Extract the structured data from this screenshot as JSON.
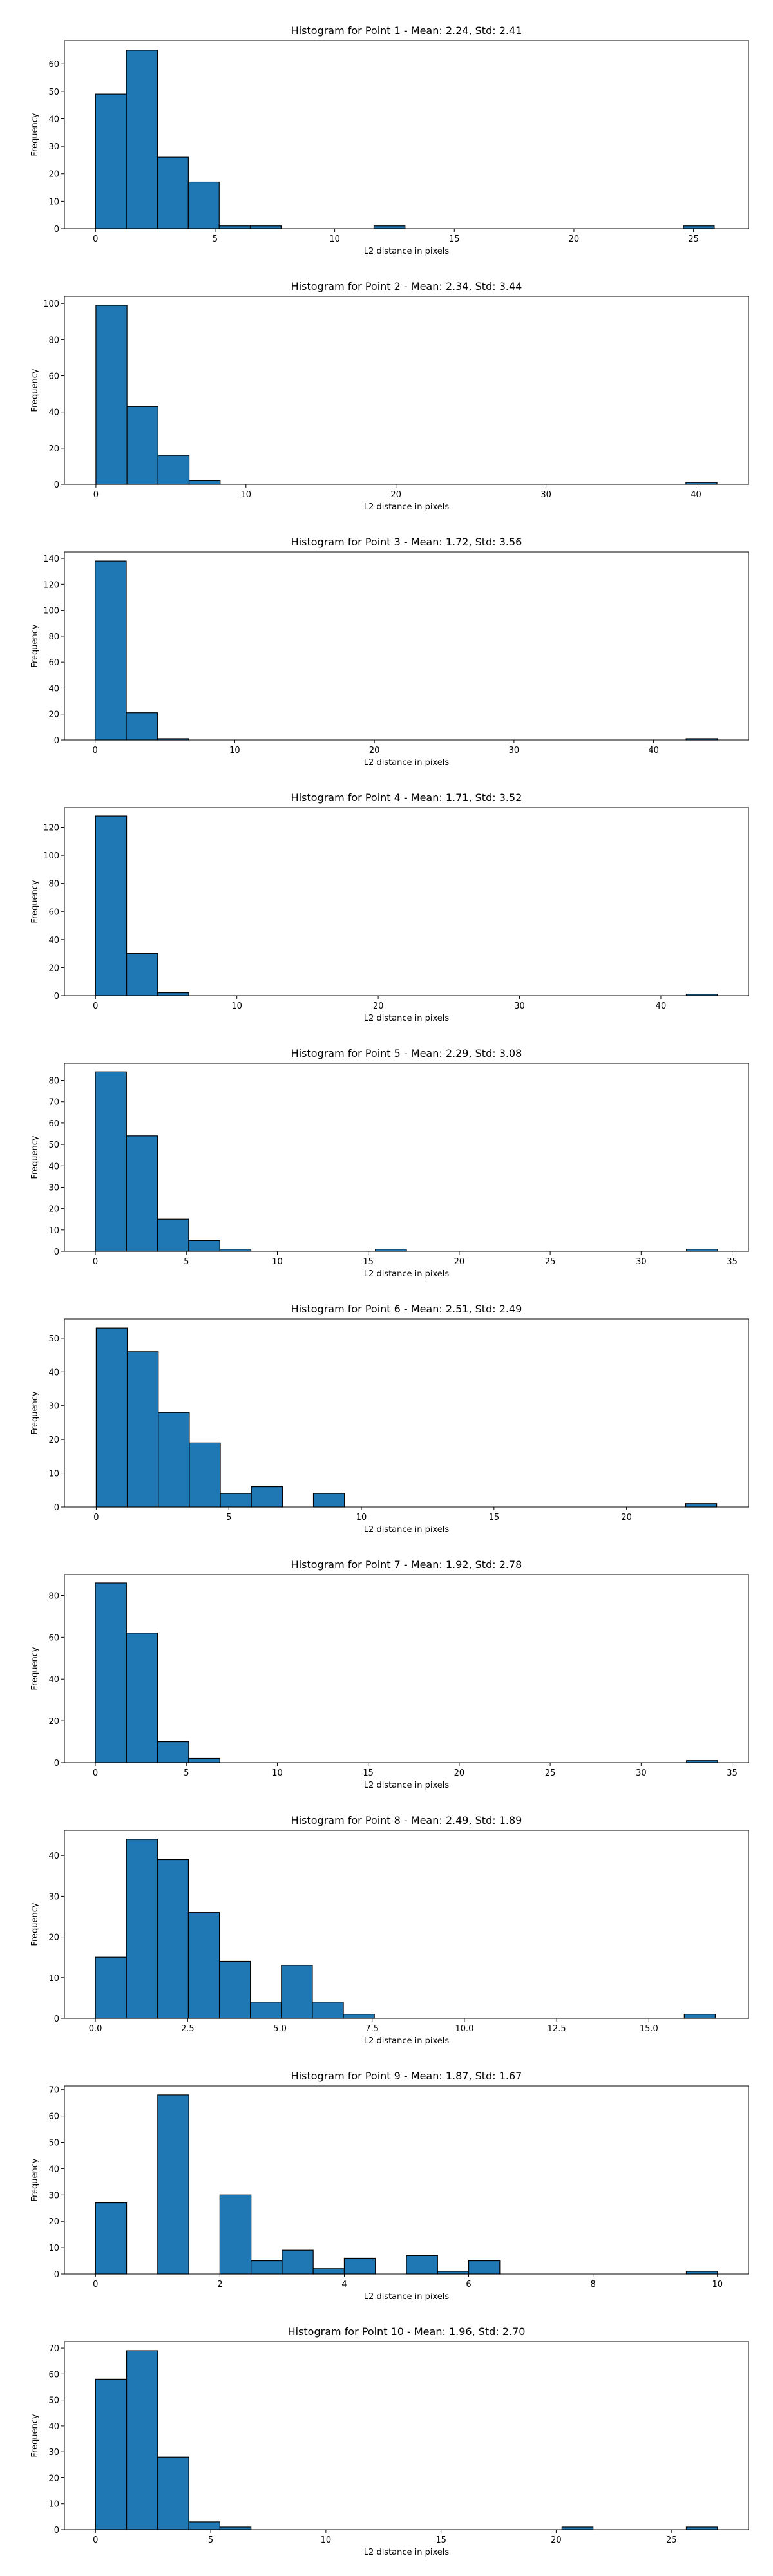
{
  "chart_data": [
    {
      "type": "bar",
      "title": "Histogram for Point 1 - Mean: 2.24, Std: 2.41",
      "xlabel": "L2 distance in pixels",
      "ylabel": "Frequency",
      "xlim": [
        -1.3,
        27.3
      ],
      "ylim": [
        0,
        68.5
      ],
      "xticks": [
        0,
        5,
        10,
        15,
        20,
        25
      ],
      "yticks": [
        0,
        10,
        20,
        30,
        40,
        50,
        60
      ],
      "bins": [
        0,
        1.29,
        2.59,
        3.88,
        5.17,
        6.47,
        7.76,
        9.06,
        10.35,
        11.64,
        12.94,
        14.23,
        15.52,
        16.82,
        18.11,
        19.4,
        20.7,
        21.99,
        23.29,
        24.58,
        25.87
      ],
      "counts": [
        49,
        65,
        26,
        17,
        1,
        1,
        0,
        0,
        0,
        1,
        0,
        0,
        0,
        0,
        0,
        0,
        0,
        0,
        0,
        1
      ],
      "bar_color": "#1f77b4",
      "grid": false
    },
    {
      "type": "bar",
      "title": "Histogram for Point 2 - Mean: 2.34, Std: 3.44",
      "xlabel": "L2 distance in pixels",
      "ylabel": "Frequency",
      "xlim": [
        -2.1,
        43.5
      ],
      "ylim": [
        0,
        104
      ],
      "xticks": [
        0,
        10,
        20,
        30,
        40
      ],
      "yticks": [
        0,
        20,
        40,
        60,
        80,
        100
      ],
      "bins": [
        0,
        2.07,
        4.14,
        6.21,
        8.28,
        10.35,
        12.42,
        14.49,
        16.56,
        18.63,
        20.7,
        22.77,
        24.84,
        26.91,
        28.98,
        31.05,
        33.12,
        35.19,
        37.26,
        39.33,
        41.4
      ],
      "counts": [
        99,
        43,
        16,
        2,
        0,
        0,
        0,
        0,
        0,
        0,
        0,
        0,
        0,
        0,
        0,
        0,
        0,
        0,
        0,
        1
      ],
      "bar_color": "#1f77b4",
      "grid": false
    },
    {
      "type": "bar",
      "title": "Histogram for Point 3 - Mean: 1.72, Std: 3.56",
      "xlabel": "L2 distance in pixels",
      "ylabel": "Frequency",
      "xlim": [
        -2.2,
        46.8
      ],
      "ylim": [
        0,
        145
      ],
      "xticks": [
        0,
        10,
        20,
        30,
        40
      ],
      "yticks": [
        0,
        20,
        40,
        60,
        80,
        100,
        120,
        140
      ],
      "bins": [
        0,
        2.23,
        4.46,
        6.68,
        8.91,
        11.14,
        13.37,
        15.6,
        17.82,
        20.05,
        22.28,
        24.51,
        26.74,
        28.96,
        31.19,
        33.42,
        35.65,
        37.88,
        40.1,
        42.33,
        44.56
      ],
      "counts": [
        138,
        21,
        1,
        0,
        0,
        0,
        0,
        0,
        0,
        0,
        0,
        0,
        0,
        0,
        0,
        0,
        0,
        0,
        0,
        1
      ],
      "bar_color": "#1f77b4",
      "grid": false
    },
    {
      "type": "bar",
      "title": "Histogram for Point 4 - Mean: 1.71, Std: 3.52",
      "xlabel": "L2 distance in pixels",
      "ylabel": "Frequency",
      "xlim": [
        -2.2,
        46.2
      ],
      "ylim": [
        0,
        134
      ],
      "xticks": [
        0,
        10,
        20,
        30,
        40
      ],
      "yticks": [
        0,
        20,
        40,
        60,
        80,
        100,
        120
      ],
      "bins": [
        0,
        2.2,
        4.4,
        6.6,
        8.8,
        11.0,
        13.2,
        15.4,
        17.6,
        19.8,
        22.0,
        24.2,
        26.4,
        28.6,
        30.8,
        33.0,
        35.2,
        37.4,
        39.6,
        41.8,
        44.0
      ],
      "counts": [
        128,
        30,
        2,
        0,
        0,
        0,
        0,
        0,
        0,
        0,
        0,
        0,
        0,
        0,
        0,
        0,
        0,
        0,
        0,
        1
      ],
      "bar_color": "#1f77b4",
      "grid": false
    },
    {
      "type": "bar",
      "title": "Histogram for Point 5 - Mean: 2.29, Std: 3.08",
      "xlabel": "L2 distance in pixels",
      "ylabel": "Frequency",
      "xlim": [
        -1.7,
        35.9
      ],
      "ylim": [
        0,
        88
      ],
      "xticks": [
        0,
        5,
        10,
        15,
        20,
        25,
        30,
        35
      ],
      "yticks": [
        0,
        10,
        20,
        30,
        40,
        50,
        60,
        70,
        80
      ],
      "bins": [
        0,
        1.71,
        3.42,
        5.13,
        6.84,
        8.55,
        10.26,
        11.97,
        13.68,
        15.39,
        17.1,
        18.81,
        20.52,
        22.23,
        23.94,
        25.65,
        27.36,
        29.07,
        30.78,
        32.49,
        34.2
      ],
      "counts": [
        84,
        54,
        15,
        5,
        1,
        0,
        0,
        0,
        0,
        1,
        0,
        0,
        0,
        0,
        0,
        0,
        0,
        0,
        0,
        1
      ],
      "bar_color": "#1f77b4",
      "grid": false
    },
    {
      "type": "bar",
      "title": "Histogram for Point 6 - Mean: 2.51, Std: 2.49",
      "xlabel": "L2 distance in pixels",
      "ylabel": "Frequency",
      "xlim": [
        -1.2,
        24.6
      ],
      "ylim": [
        0,
        55.7
      ],
      "xticks": [
        0,
        5,
        10,
        15,
        20
      ],
      "yticks": [
        0,
        10,
        20,
        30,
        40,
        50
      ],
      "bins": [
        0,
        1.17,
        2.34,
        3.51,
        4.68,
        5.85,
        7.02,
        8.19,
        9.36,
        10.53,
        11.7,
        12.87,
        14.04,
        15.21,
        16.38,
        17.55,
        18.72,
        19.89,
        21.06,
        22.23,
        23.4
      ],
      "counts": [
        53,
        46,
        28,
        19,
        4,
        6,
        0,
        4,
        0,
        0,
        0,
        0,
        0,
        0,
        0,
        0,
        0,
        0,
        0,
        1
      ],
      "bar_color": "#1f77b4",
      "grid": false
    },
    {
      "type": "bar",
      "title": "Histogram for Point 7 - Mean: 1.92, Std: 2.78",
      "xlabel": "L2 distance in pixels",
      "ylabel": "Frequency",
      "xlim": [
        -1.7,
        35.9
      ],
      "ylim": [
        0,
        90
      ],
      "xticks": [
        0,
        5,
        10,
        15,
        20,
        25,
        30,
        35
      ],
      "yticks": [
        0,
        20,
        40,
        60,
        80
      ],
      "bins": [
        0,
        1.71,
        3.42,
        5.13,
        6.84,
        8.55,
        10.26,
        11.97,
        13.68,
        15.39,
        17.1,
        18.81,
        20.52,
        22.23,
        23.94,
        25.65,
        27.36,
        29.07,
        30.78,
        32.49,
        34.2
      ],
      "counts": [
        86,
        62,
        10,
        2,
        0,
        0,
        0,
        0,
        0,
        0,
        0,
        0,
        0,
        0,
        0,
        0,
        0,
        0,
        0,
        1
      ],
      "bar_color": "#1f77b4",
      "grid": false
    },
    {
      "type": "bar",
      "title": "Histogram for Point 8 - Mean: 2.49, Std: 1.89",
      "xlabel": "L2 distance in pixels",
      "ylabel": "Frequency",
      "xlim": [
        -0.84,
        17.7
      ],
      "ylim": [
        0,
        46.2
      ],
      "xticks": [
        0.0,
        2.5,
        5.0,
        7.5,
        10.0,
        12.5,
        15.0
      ],
      "xtick_labels": [
        "0.0",
        "2.5",
        "5.0",
        "7.5",
        "10.0",
        "12.5",
        "15.0"
      ],
      "yticks": [
        0,
        10,
        20,
        30,
        40
      ],
      "bins": [
        0,
        0.84,
        1.68,
        2.52,
        3.36,
        4.2,
        5.04,
        5.88,
        6.72,
        7.56,
        8.4,
        9.24,
        10.08,
        10.92,
        11.76,
        12.6,
        13.44,
        14.28,
        15.12,
        15.96,
        16.8
      ],
      "counts": [
        15,
        44,
        39,
        26,
        14,
        4,
        13,
        4,
        1,
        0,
        0,
        0,
        0,
        0,
        0,
        0,
        0,
        0,
        0,
        1
      ],
      "bar_color": "#1f77b4",
      "grid": false
    },
    {
      "type": "bar",
      "title": "Histogram for Point 9 - Mean: 1.87, Std: 1.67",
      "xlabel": "L2 distance in pixels",
      "ylabel": "Frequency",
      "xlim": [
        -0.5,
        10.5
      ],
      "ylim": [
        0,
        71.4
      ],
      "xticks": [
        0,
        2,
        4,
        6,
        8,
        10
      ],
      "yticks": [
        0,
        10,
        20,
        30,
        40,
        50,
        60,
        70
      ],
      "bins": [
        0,
        0.5,
        1.0,
        1.5,
        2.0,
        2.5,
        3.0,
        3.5,
        4.0,
        4.5,
        5.0,
        5.5,
        6.0,
        6.5,
        7.0,
        7.5,
        8.0,
        8.5,
        9.0,
        9.5,
        10.0
      ],
      "counts": [
        27,
        0,
        68,
        0,
        30,
        5,
        9,
        2,
        6,
        0,
        7,
        1,
        5,
        0,
        0,
        0,
        0,
        0,
        0,
        1
      ],
      "bar_color": "#1f77b4",
      "grid": false
    },
    {
      "type": "bar",
      "title": "Histogram for Point 10 - Mean: 1.96, Std: 2.70",
      "xlabel": "L2 distance in pixels",
      "ylabel": "Frequency",
      "xlim": [
        -1.35,
        28.35
      ],
      "ylim": [
        0,
        72.5
      ],
      "xticks": [
        0,
        5,
        10,
        15,
        20,
        25
      ],
      "yticks": [
        0,
        10,
        20,
        30,
        40,
        50,
        60,
        70
      ],
      "bins": [
        0,
        1.35,
        2.7,
        4.05,
        5.4,
        6.75,
        8.1,
        9.45,
        10.8,
        12.15,
        13.5,
        14.85,
        16.2,
        17.55,
        18.9,
        20.25,
        21.6,
        22.95,
        24.3,
        25.65,
        27.0
      ],
      "counts": [
        58,
        69,
        28,
        3,
        1,
        0,
        0,
        0,
        0,
        0,
        0,
        0,
        0,
        0,
        0,
        1,
        0,
        0,
        0,
        1
      ],
      "bar_color": "#1f77b4",
      "grid": false
    }
  ]
}
